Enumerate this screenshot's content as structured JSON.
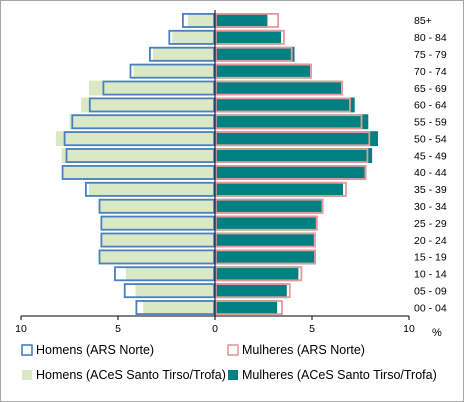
{
  "chart_data": {
    "type": "bar",
    "orientation": "horizontal",
    "subtype": "population-pyramid",
    "categories": [
      "00 - 04",
      "05 - 09",
      "10 - 14",
      "15 - 19",
      "20 - 24",
      "25 - 29",
      "30 - 34",
      "35 - 39",
      "40 - 44",
      "45 - 49",
      "50 - 54",
      "55 - 59",
      "60 - 64",
      "65 - 69",
      "70 - 74",
      "75 - 79",
      "80 - 84",
      "85+"
    ],
    "x_axis_unit": "%",
    "xlim": [
      -10,
      10
    ],
    "xticks": [
      -10,
      -5,
      0,
      5,
      10
    ],
    "xtick_labels": [
      "10",
      "5",
      "0",
      "5",
      "10"
    ],
    "legend_position": "bottom",
    "series": [
      {
        "name": "Homens (ARS Norte)",
        "side": "left",
        "style": "outline",
        "color": "#4a7fc1",
        "values": [
          4.1,
          4.7,
          5.2,
          6.0,
          5.9,
          5.9,
          6.0,
          6.7,
          7.9,
          7.7,
          7.8,
          7.4,
          6.5,
          5.8,
          4.4,
          3.4,
          2.4,
          1.7
        ]
      },
      {
        "name": "Mulheres (ARS Norte)",
        "side": "right",
        "style": "outline",
        "color": "#e49a9a",
        "values": [
          3.5,
          3.9,
          4.5,
          5.2,
          5.2,
          5.3,
          5.6,
          6.8,
          7.8,
          7.9,
          8.0,
          7.6,
          7.0,
          6.6,
          5.0,
          4.0,
          3.6,
          3.3
        ]
      },
      {
        "name": "Homens (ACeS Santo Tirso/Trofa)",
        "side": "left",
        "style": "filled",
        "color": "#d9e8c5",
        "values": [
          3.7,
          4.1,
          4.6,
          5.9,
          5.9,
          5.8,
          6.0,
          6.5,
          7.8,
          7.9,
          8.2,
          7.5,
          6.9,
          6.5,
          4.2,
          3.2,
          2.2,
          1.4
        ]
      },
      {
        "name": "Mulheres (ACeS Santo Tirso/Trofa)",
        "side": "right",
        "style": "filled",
        "color": "#008080",
        "values": [
          3.2,
          3.7,
          4.3,
          5.2,
          5.1,
          5.2,
          5.5,
          6.6,
          7.8,
          8.1,
          8.4,
          7.9,
          7.2,
          6.5,
          4.9,
          4.1,
          3.4,
          2.7
        ]
      }
    ]
  }
}
